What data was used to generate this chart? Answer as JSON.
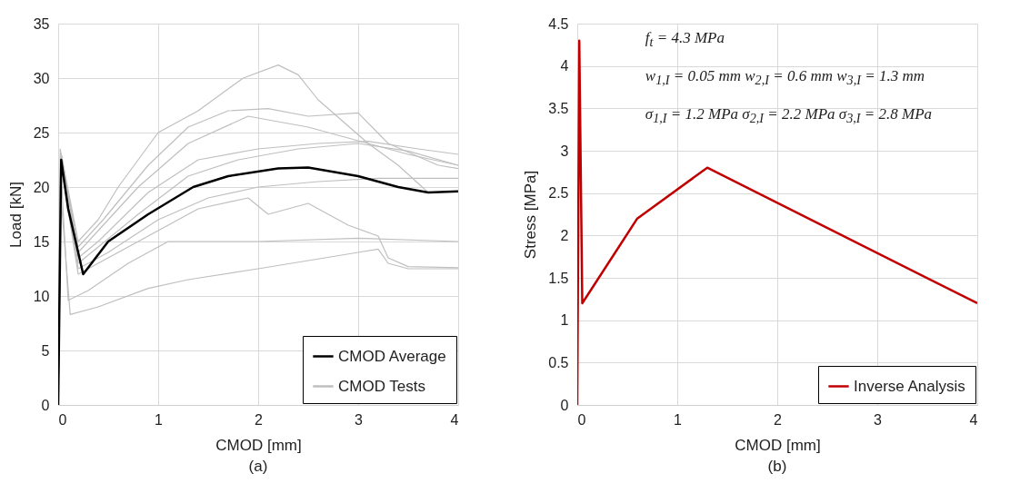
{
  "chart_data": [
    {
      "type": "line",
      "xlabel": "CMOD [mm]",
      "ylabel": "Load [kN]",
      "annotations": [
        "(a)"
      ],
      "xlim": [
        0,
        4
      ],
      "xticks": [
        0,
        1,
        2,
        3,
        4
      ],
      "ylim": [
        0,
        35
      ],
      "yticks": [
        0,
        5,
        10,
        15,
        20,
        25,
        30,
        35
      ],
      "grid": true,
      "legend": "bottom right",
      "series": [
        {
          "name": "CMOD Average",
          "color": "#000000",
          "x": [
            0,
            0.03,
            0.1,
            0.25,
            0.5,
            0.9,
            1.35,
            1.7,
            2.2,
            2.5,
            3.0,
            3.4,
            3.7,
            4
          ],
          "values": [
            0,
            22.5,
            18,
            12,
            15,
            17.5,
            20,
            21,
            21.7,
            21.8,
            21,
            20,
            19.5,
            19.6
          ]
        },
        {
          "name": "CMOD Tests",
          "color": "#bfbfbf",
          "x": [
            0,
            0.02,
            0.2,
            0.4,
            0.6,
            1.0,
            1.4,
            1.85,
            2.2,
            2.4,
            2.6,
            2.85,
            3.1,
            3.4,
            3.7
          ],
          "values": [
            0,
            23.5,
            15,
            17,
            20,
            25,
            27,
            30,
            31.2,
            30.3,
            28,
            26,
            24,
            22,
            19.5
          ]
        },
        {
          "color": "#bfbfbf",
          "x": [
            0,
            0.03,
            0.2,
            0.45,
            0.9,
            1.3,
            1.7,
            2.1,
            2.5,
            3.0,
            3.3,
            3.8,
            4
          ],
          "values": [
            0,
            23,
            14.5,
            17,
            22,
            25.5,
            27,
            27.2,
            26.5,
            26.8,
            24,
            22,
            21.7
          ]
        },
        {
          "color": "#bfbfbf",
          "x": [
            0,
            0.03,
            0.2,
            0.4,
            0.8,
            1.3,
            1.9,
            2.5,
            3.1,
            3.5,
            4
          ],
          "values": [
            0,
            23,
            14,
            16,
            20,
            24,
            26.5,
            25.5,
            24,
            23,
            22
          ]
        },
        {
          "color": "#bfbfbf",
          "x": [
            0,
            0.03,
            0.2,
            0.4,
            0.9,
            1.4,
            2.0,
            2.6,
            3.1,
            3.6,
            4
          ],
          "values": [
            0,
            23,
            13.5,
            15,
            19.5,
            22.5,
            23.5,
            24,
            24.2,
            23.5,
            23
          ]
        },
        {
          "color": "#bfbfbf",
          "x": [
            0,
            0.03,
            0.2,
            0.4,
            0.8,
            1.3,
            1.8,
            2.4,
            3.0,
            3.5,
            4
          ],
          "values": [
            0,
            22.5,
            13,
            14.5,
            17.5,
            21,
            22.5,
            23.5,
            24,
            23.3,
            22
          ]
        },
        {
          "color": "#bfbfbf",
          "x": [
            0,
            0.03,
            0.2,
            0.5,
            1.0,
            1.5,
            2.0,
            2.6,
            3.2,
            4
          ],
          "values": [
            0,
            22,
            12.5,
            14,
            17,
            19,
            20,
            20.5,
            20.8,
            20.8
          ]
        },
        {
          "color": "#bfbfbf",
          "x": [
            0,
            0.03,
            0.2,
            0.5,
            1.0,
            1.4,
            1.9,
            2.1,
            2.5,
            2.9,
            3.2,
            3.3,
            3.5,
            4
          ],
          "values": [
            0,
            22,
            12,
            13.5,
            16,
            18,
            19,
            17.5,
            18.5,
            16.5,
            15.5,
            13.5,
            12.7,
            12.6
          ]
        },
        {
          "color": "#bfbfbf",
          "x": [
            0,
            0.03,
            0.1,
            0.3,
            0.7,
            1.1,
            2.0,
            3.0,
            4
          ],
          "values": [
            0,
            21,
            9.6,
            10.5,
            13,
            15,
            15,
            15.3,
            15
          ]
        },
        {
          "color": "#bfbfbf",
          "x": [
            0,
            0.02,
            0.12,
            0.4,
            0.9,
            1.3,
            2.0,
            3.0,
            3.2,
            3.3,
            3.5,
            4
          ],
          "values": [
            0,
            20,
            8.3,
            9,
            10.7,
            11.5,
            12.5,
            14,
            14.3,
            13,
            12.5,
            12.5
          ]
        }
      ]
    },
    {
      "type": "line",
      "xlabel": "CMOD [mm]",
      "ylabel": "Stress [MPa]",
      "annotations": [
        "f$_{t}$ = 4.3 MPa",
        "w$_{1,I}$ = 0.05 mm  w$_{2,I}$ = 0.6 mm  w$_{3,I}$ = 1.3 mm",
        "σ$_{1,I}$ = 1.2 MPa  σ$_{2,I}$ = 2.2 MPa  σ$_{3,I}$ = 2.8 MPa",
        "(b)"
      ],
      "xlim": [
        0,
        4
      ],
      "xticks": [
        0,
        1,
        2,
        3,
        4
      ],
      "ylim": [
        0,
        4.5
      ],
      "yticks": [
        0,
        0.5,
        1,
        1.5,
        2,
        2.5,
        3,
        3.5,
        4,
        4.5
      ],
      "grid": true,
      "legend": "bottom right",
      "series": [
        {
          "name": "Inverse Analysis",
          "color": "#c00000",
          "x": [
            0,
            0.02,
            0.05,
            0.6,
            1.3,
            4
          ],
          "values": [
            0,
            4.3,
            1.2,
            2.2,
            2.8,
            1.2
          ]
        }
      ]
    }
  ]
}
